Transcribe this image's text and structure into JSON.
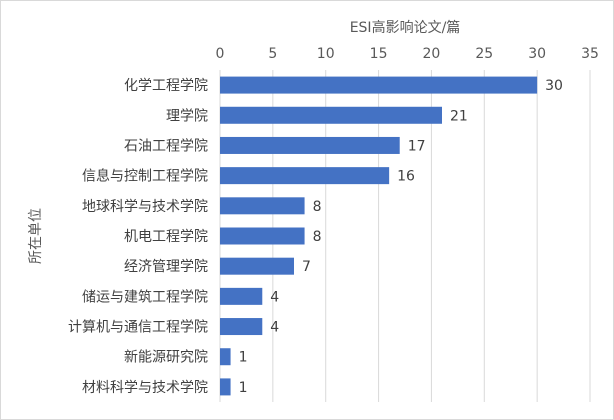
{
  "chart_data": {
    "type": "bar",
    "orientation": "horizontal",
    "x_axis_position": "top",
    "xlabel": "ESI高影响论文/篇",
    "ylabel": "所在单位",
    "xlim": [
      0,
      35
    ],
    "xticks": [
      0,
      5,
      10,
      15,
      20,
      25,
      30,
      35
    ],
    "grid": true,
    "data_labels": true,
    "bar_color": "#4472C4",
    "grid_color": "#d9d9d9",
    "categories": [
      "化学工程学院",
      "理学院",
      "石油工程学院",
      "信息与控制工程学院",
      "地球科学与技术学院",
      "机电工程学院",
      "经济管理学院",
      "储运与建筑工程学院",
      "计算机与通信工程学院",
      "新能源研究院",
      "材料科学与技术学院"
    ],
    "values": [
      30,
      21,
      17,
      16,
      8,
      8,
      7,
      4,
      4,
      1,
      1
    ]
  }
}
